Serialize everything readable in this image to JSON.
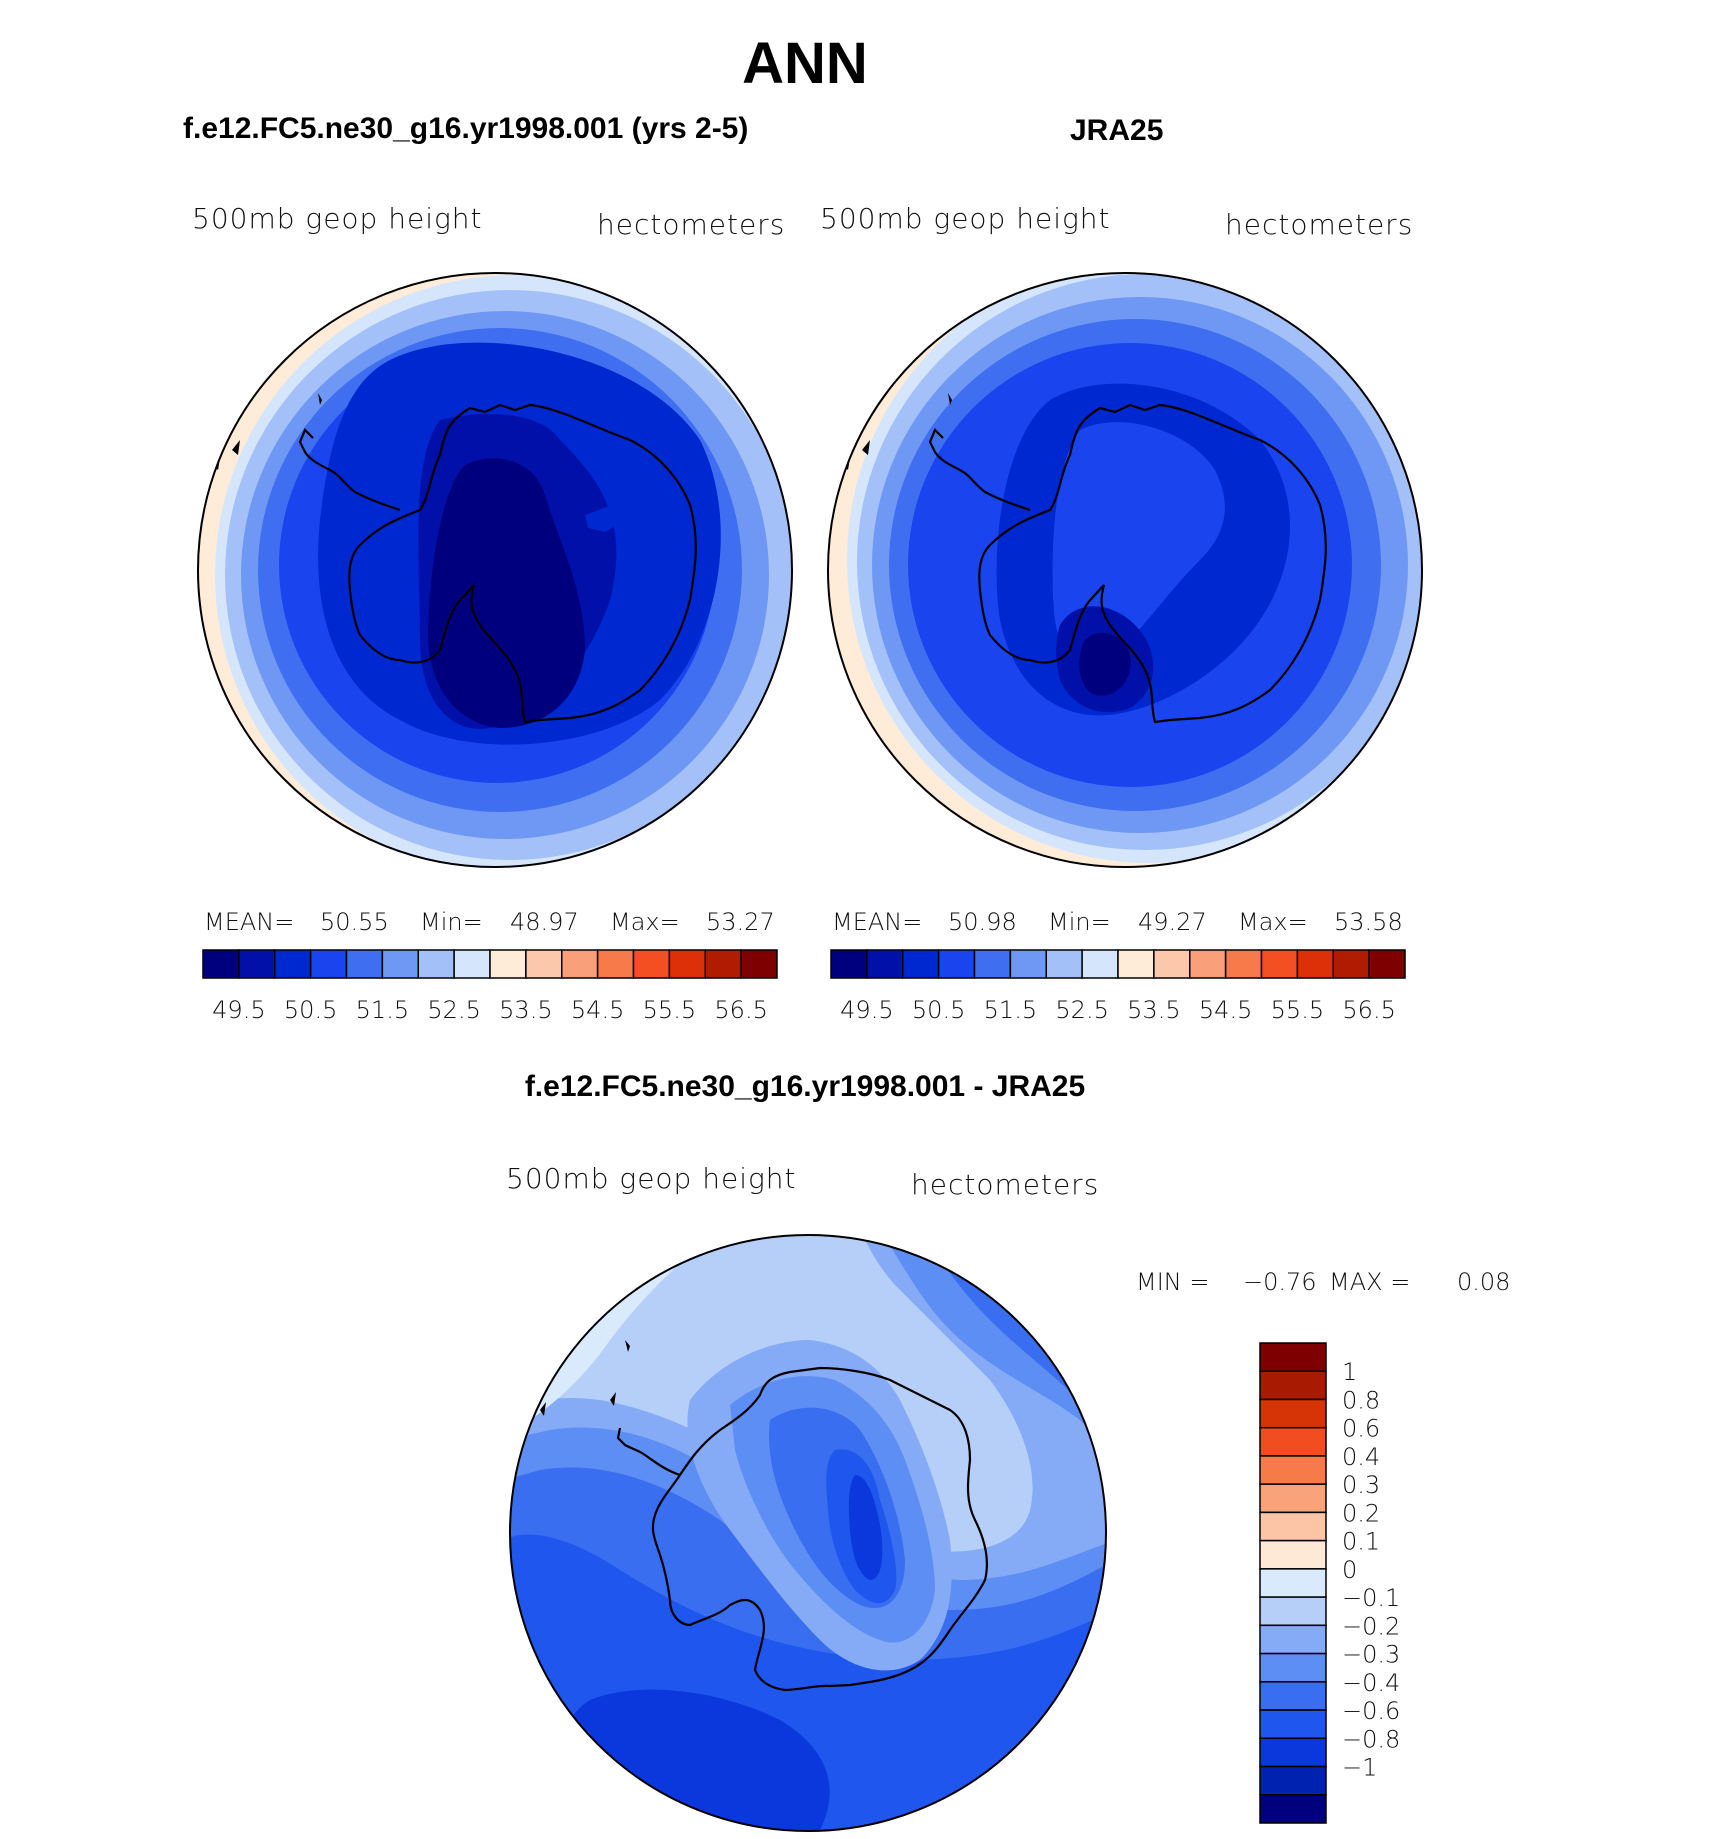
{
  "figure": {
    "title": "ANN"
  },
  "colors": {
    "abs_scale": [
      "#00007f",
      "#0010a8",
      "#0028d0",
      "#1a45ee",
      "#3f6ff0",
      "#6f98f5",
      "#a3c0f8",
      "#d5e6fc",
      "#feebd8",
      "#fcc8ac",
      "#f9a07a",
      "#f77a4a",
      "#f44f22",
      "#dd3008",
      "#b01c02",
      "#7e0000"
    ],
    "diff_scale": [
      "#00007f",
      "#0022b0",
      "#0a38dc",
      "#1e56ee",
      "#3a6ef0",
      "#5d8ef3",
      "#86abf6",
      "#b5cff9",
      "#d9eafd",
      "#fde9d6",
      "#fcc6a6",
      "#f9a37a",
      "#f77a4a",
      "#f24d20",
      "#d63306",
      "#a81a02",
      "#7e0000"
    ]
  },
  "panels": {
    "model": {
      "title": "f.e12.FC5.ne30_g16.yr1998.001 (yrs 2-5)",
      "variable_label": "500mb geop height",
      "units_label": "hectometers",
      "stats": {
        "mean_label": "MEAN=",
        "mean_value": "50.55",
        "min_label": "Min=",
        "min_value": "48.97",
        "max_label": "Max=",
        "max_value": "53.27"
      },
      "colorbar_ticks": [
        "49.5",
        "50.5",
        "51.5",
        "52.5",
        "53.5",
        "54.5",
        "55.5",
        "56.5"
      ]
    },
    "obs": {
      "title": "JRA25",
      "variable_label": "500mb geop height",
      "units_label": "hectometers",
      "stats": {
        "mean_label": "MEAN=",
        "mean_value": "50.98",
        "min_label": "Min=",
        "min_value": "49.27",
        "max_label": "Max=",
        "max_value": "53.58"
      },
      "colorbar_ticks": [
        "49.5",
        "50.5",
        "51.5",
        "52.5",
        "53.5",
        "54.5",
        "55.5",
        "56.5"
      ]
    },
    "diff": {
      "title": "f.e12.FC5.ne30_g16.yr1998.001 - JRA25",
      "variable_label": "500mb geop height",
      "units_label": "hectometers",
      "stats": {
        "min_label": "MIN =",
        "min_value": "−0.76",
        "max_label": "MAX =",
        "max_value": "0.08"
      },
      "colorbar_ticks": [
        "1",
        "0.8",
        "0.6",
        "0.4",
        "0.3",
        "0.2",
        "0.1",
        "0",
        "−0.1",
        "−0.2",
        "−0.3",
        "−0.4",
        "−0.6",
        "−0.8",
        "−1"
      ]
    }
  }
}
